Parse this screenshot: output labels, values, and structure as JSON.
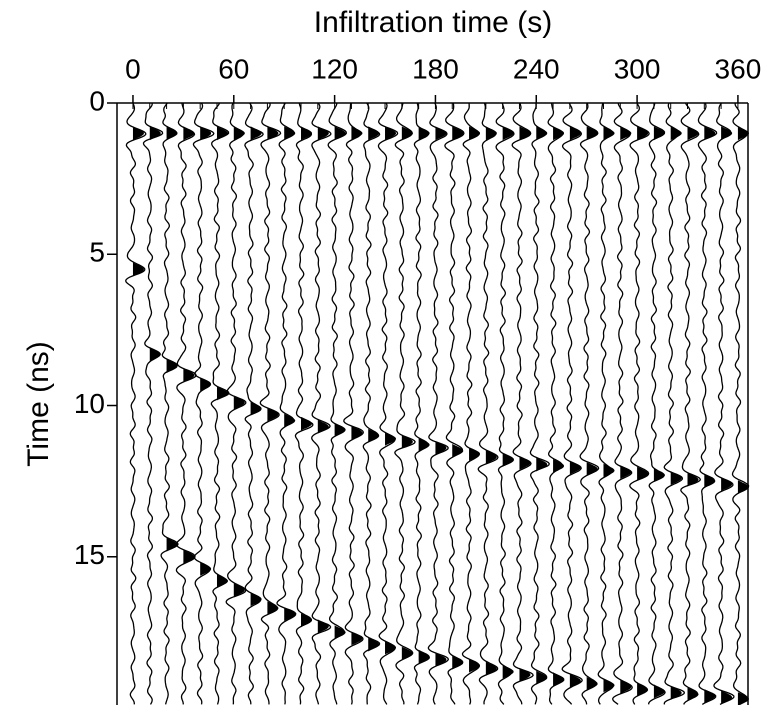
{
  "chart_data": {
    "type": "wiggle",
    "title": "Infiltration time (s)",
    "y_label": "Time (ns)",
    "x": [
      0,
      10,
      20,
      30,
      40,
      50,
      60,
      70,
      80,
      90,
      100,
      110,
      120,
      130,
      140,
      150,
      160,
      170,
      180,
      190,
      200,
      210,
      220,
      230,
      240,
      250,
      260,
      270,
      280,
      290,
      300,
      310,
      320,
      330,
      340,
      350,
      360
    ],
    "series": [
      {
        "color": "#000000",
        "values": [
          1,
          1,
          1,
          1,
          1,
          1,
          1,
          1,
          1,
          1,
          1,
          1,
          1,
          1,
          1,
          1,
          1,
          1,
          1,
          1,
          1,
          1,
          1,
          1,
          1,
          1,
          1,
          1,
          1,
          1,
          1,
          1,
          1,
          1,
          1,
          1,
          1
        ]
      },
      {
        "color": "#000000",
        "values": [
          5.5,
          8.3,
          8.7,
          9.0,
          9.3,
          9.6,
          9.9,
          10.1,
          10.3,
          10.5,
          10.6,
          10.7,
          10.8,
          10.9,
          11.0,
          11.1,
          11.2,
          11.3,
          11.4,
          11.5,
          11.6,
          11.7,
          11.8,
          11.9,
          11.95,
          12.0,
          12.05,
          12.1,
          12.15,
          12.2,
          12.25,
          12.3,
          12.4,
          12.45,
          12.5,
          12.6,
          12.7
        ]
      },
      {
        "color": "#000000",
        "values": [
          null,
          null,
          14.6,
          15.0,
          15.4,
          15.8,
          16.1,
          16.4,
          16.7,
          16.9,
          17.1,
          17.3,
          17.5,
          17.7,
          17.9,
          18.0,
          18.2,
          18.3,
          18.4,
          18.5,
          18.6,
          18.7,
          18.8,
          18.9,
          19.0,
          19.05,
          19.1,
          19.2,
          19.25,
          19.3,
          19.4,
          19.45,
          19.5,
          19.55,
          19.6,
          19.65,
          19.7
        ]
      }
    ],
    "xlim": [
      -9.5,
      366
    ],
    "xticks": [
      0,
      60,
      120,
      180,
      240,
      300,
      360
    ],
    "ylim": [
      0,
      19.9
    ],
    "yticks": [
      0,
      5,
      10,
      15
    ],
    "y_reversed": true,
    "x_axis_position": "top"
  }
}
